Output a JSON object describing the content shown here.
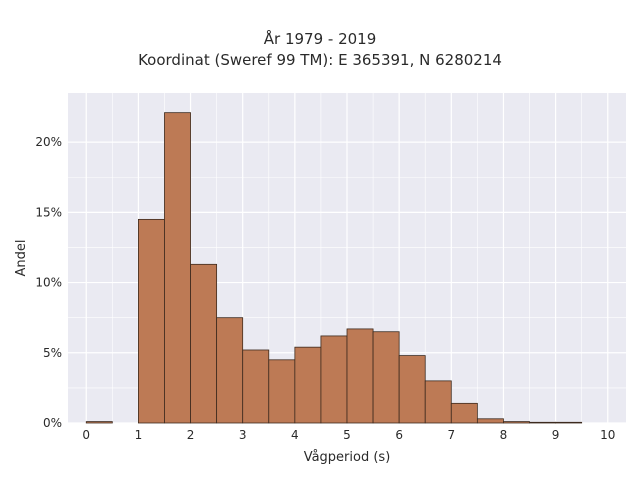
{
  "chart_data": {
    "type": "bar",
    "title": "År 1979 - 2019",
    "subtitle": "Koordinat (Sweref 99 TM): E 365391, N 6280214",
    "xlabel": "Vågperiod (s)",
    "ylabel": "Andel",
    "xlim": [
      -0.35,
      10.35
    ],
    "ylim": [
      0,
      23.5
    ],
    "x_ticks": [
      0,
      1,
      2,
      3,
      4,
      5,
      6,
      7,
      8,
      9,
      10
    ],
    "y_ticks": [
      0,
      5,
      10,
      15,
      20
    ],
    "y_tick_labels": [
      "0%",
      "5%",
      "10%",
      "15%",
      "20%"
    ],
    "bin_edges": [
      0,
      0.5,
      1,
      1.5,
      2,
      2.5,
      3,
      3.5,
      4,
      4.5,
      5,
      5.5,
      6,
      6.5,
      7,
      7.5,
      8,
      8.5,
      9,
      9.5,
      10
    ],
    "values": [
      0.1,
      0,
      14.5,
      22.1,
      11.3,
      7.5,
      5.2,
      4.5,
      5.4,
      6.2,
      6.7,
      6.5,
      4.8,
      3.0,
      1.4,
      0.3,
      0.1,
      0.05,
      0.05,
      0
    ],
    "unit": "%",
    "grid": true,
    "colors": {
      "bar": "#bd7a55",
      "bar_edge": "#3d2a1e",
      "background": "#eaeaf2",
      "grid": "#ffffff"
    }
  }
}
